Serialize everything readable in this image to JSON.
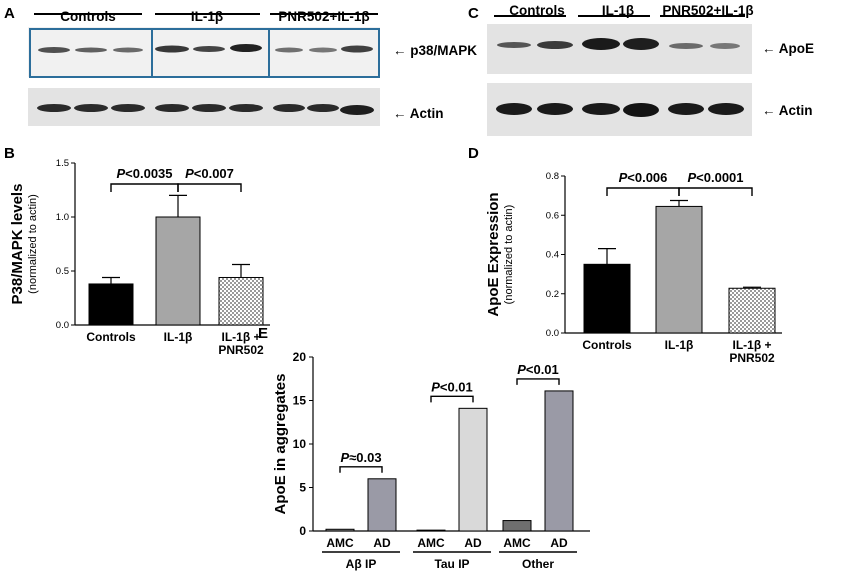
{
  "panels": {
    "A": {
      "letter": "A",
      "groups": [
        "Controls",
        "IL-1β",
        "PNR502+IL-1β"
      ],
      "bands": [
        "p38/MAPK",
        "Actin"
      ]
    },
    "C": {
      "letter": "C",
      "groups": [
        "Controls",
        "IL-1β",
        "PNR502+IL-1β"
      ],
      "bands": [
        "ApoE",
        "Actin"
      ]
    }
  },
  "chart_data": [
    {
      "panel": "B",
      "type": "bar",
      "ylabel": "P38/MAPK levels",
      "ylabel_sub": "(normalized to actin)",
      "categories": [
        "Controls",
        "IL-1β",
        "IL-1β +\nPNR502"
      ],
      "values": [
        0.38,
        1.0,
        0.44
      ],
      "errors": [
        0.06,
        0.2,
        0.12
      ],
      "fills": [
        "black",
        "grey",
        "checker"
      ],
      "ylim": [
        0,
        1.5
      ],
      "yticks": [
        "0.0",
        "0.5",
        "1.0",
        "1.5"
      ],
      "annotations": [
        {
          "p": "P",
          "rest": "<0.0035",
          "from": 0,
          "to": 1
        },
        {
          "p": "P",
          "rest": "<0.007",
          "from": 1,
          "to": 2
        }
      ]
    },
    {
      "panel": "D",
      "type": "bar",
      "ylabel": "ApoE Expression",
      "ylabel_sub": "(normalized to actin)",
      "categories": [
        "Controls",
        "IL-1β",
        "IL-1β +\nPNR502"
      ],
      "values": [
        0.35,
        0.645,
        0.228
      ],
      "errors": [
        0.08,
        0.03,
        0.005
      ],
      "fills": [
        "black",
        "grey",
        "checker"
      ],
      "ylim": [
        0,
        0.8
      ],
      "yticks": [
        "0.0",
        "0.2",
        "0.4",
        "0.6",
        "0.8"
      ],
      "annotations": [
        {
          "p": "P",
          "rest": "<0.006",
          "from": 0,
          "to": 1
        },
        {
          "p": "P",
          "rest": "<0.0001",
          "from": 1,
          "to": 2
        }
      ]
    },
    {
      "panel": "E",
      "type": "bar",
      "ylabel": "ApoE in aggregates",
      "groups": [
        "Aβ IP",
        "Tau IP",
        "Other"
      ],
      "bar_labels": [
        "AMC",
        "AD"
      ],
      "values": [
        [
          0.2,
          6.0
        ],
        [
          0.1,
          14.1
        ],
        [
          1.2,
          16.1
        ]
      ],
      "colors": [
        [
          "#8f8f8f",
          "#9a9aa6"
        ],
        [
          "#8f8f8f",
          "#d9d9d9"
        ],
        [
          "#6f6f6f",
          "#9a9aa6"
        ]
      ],
      "ylim": [
        0,
        20
      ],
      "yticks": [
        "0",
        "5",
        "10",
        "15",
        "20"
      ],
      "annotations": [
        {
          "p": "P",
          "rest": "≈0.03",
          "group": 0
        },
        {
          "p": "P",
          "rest": "<0.01",
          "group": 1
        },
        {
          "p": "P",
          "rest": "<0.01",
          "group": 2
        }
      ]
    }
  ],
  "letters": {
    "B": "B",
    "D": "D",
    "E": "E"
  }
}
